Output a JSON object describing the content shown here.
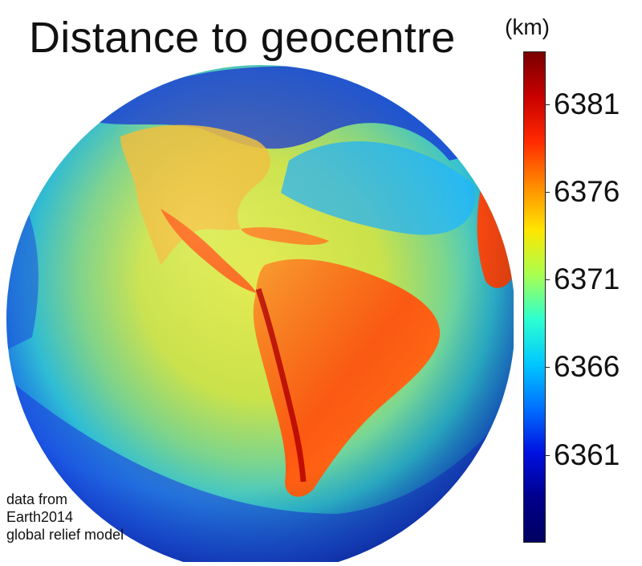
{
  "title": "Distance to geocentre",
  "colorbar": {
    "unit": "(km)",
    "min": 6356,
    "max": 6384,
    "ticks": [
      {
        "value": 6381,
        "label": "6381"
      },
      {
        "value": 6376,
        "label": "6376"
      },
      {
        "value": 6371,
        "label": "6371"
      },
      {
        "value": 6366,
        "label": "6366"
      },
      {
        "value": 6361,
        "label": "6361"
      }
    ],
    "colors": [
      "#7a0000",
      "#c80000",
      "#ff2a00",
      "#ff8c00",
      "#ffe600",
      "#a8ff50",
      "#2dffd0",
      "#00c8ff",
      "#0070ff",
      "#0010e0",
      "#00008c",
      "#000060"
    ]
  },
  "credit": {
    "line1": "data from",
    "line2": "Earth2014",
    "line3": "global relief model"
  },
  "palette": {
    "ocean_deep": "#0a2fcc",
    "ocean_mid": "#1fa6ff",
    "ocean_shallow": "#8fe8d2",
    "land_high": "#ff4a10",
    "land_mid": "#ff8c1a",
    "plain": "#f7e23a"
  }
}
